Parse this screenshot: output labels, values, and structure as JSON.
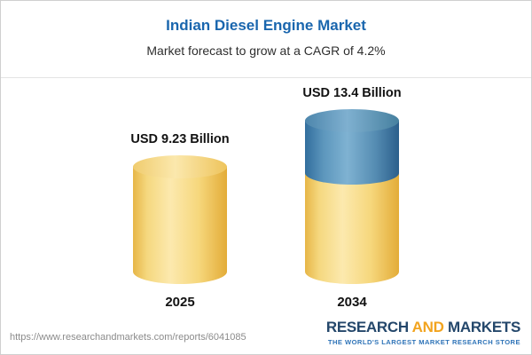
{
  "chart_data": {
    "type": "bar",
    "title": "Indian Diesel Engine Market",
    "subtitle": "Market forecast to grow at a CAGR of 4.2%",
    "categories": [
      "2025",
      "2034"
    ],
    "values": [
      9.23,
      13.4
    ],
    "value_labels": [
      "USD 9.23 Billion",
      "USD 13.4 Billion"
    ],
    "unit": "USD Billion",
    "cagr_percent": 4.2,
    "legend_position": "none",
    "grid": false,
    "bar_style": "3d-cylinder",
    "series": [
      {
        "name": "base-2025-level",
        "values": [
          9.23,
          9.23
        ],
        "color": "#f5d87f"
      },
      {
        "name": "growth-to-2034",
        "values": [
          0,
          4.17
        ],
        "color": "#5d97bd"
      }
    ]
  },
  "header": {
    "title": "Indian Diesel Engine Market",
    "subtitle": "Market forecast to grow at a CAGR of 4.2%"
  },
  "bars": [
    {
      "year": "2025",
      "value_label": "USD 9.23 Billion"
    },
    {
      "year": "2034",
      "value_label": "USD 13.4 Billion"
    }
  ],
  "footer": {
    "url": "https://www.researchandmarkets.com/reports/6041085",
    "logo": {
      "research": "RESEARCH",
      "and": "AND",
      "markets": "MARKETS",
      "tagline": "THE WORLD'S LARGEST MARKET RESEARCH STORE"
    }
  },
  "colors": {
    "title_blue": "#1a66ae",
    "cylinder_gold": "#f5d87f",
    "cylinder_blue": "#5d97bd",
    "logo_navy": "#24476b",
    "logo_orange": "#f2a41f",
    "tagline_blue": "#2f74b8",
    "url_gray": "#8b8b8b"
  }
}
